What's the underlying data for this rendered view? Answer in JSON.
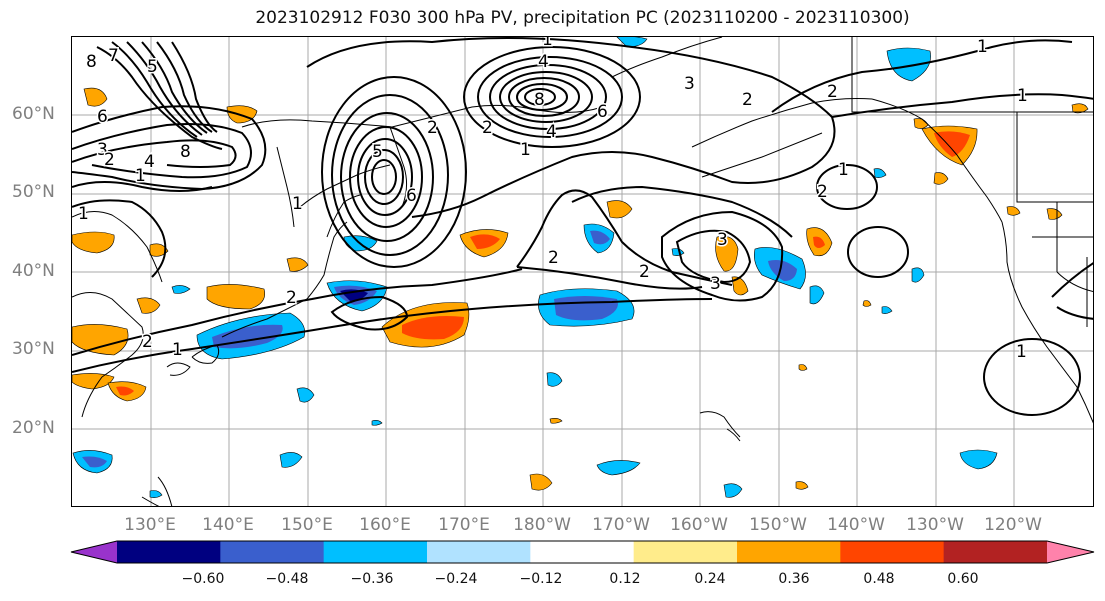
{
  "title": "2023102912 F030 300 hPa PV, precipitation PC (2023110200 - 2023110300)",
  "lat_labels": [
    "60°N",
    "50°N",
    "40°N",
    "30°N",
    "20°N"
  ],
  "lon_labels": [
    "130°E",
    "140°E",
    "150°E",
    "160°E",
    "170°E",
    "180°W",
    "170°W",
    "160°W",
    "150°W",
    "140°W",
    "130°W",
    "120°W"
  ],
  "colorbar": {
    "tick_labels": [
      "−0.60",
      "−0.48",
      "−0.36",
      "−0.24",
      "−0.12",
      "0.12",
      "0.24",
      "0.36",
      "0.48",
      "0.60"
    ],
    "bin_colors": [
      "#9933cc",
      "#000080",
      "#3a5fcd",
      "#00bfff",
      "#b0e2ff",
      "#ffffff",
      "#ffec8b",
      "#ffa500",
      "#ff4500",
      "#b22222",
      "#ff82ab"
    ]
  },
  "pv_contour_labels": [
    "8",
    "7",
    "6",
    "5",
    "3",
    "2",
    "1",
    "4",
    "1",
    "8",
    "1",
    "5",
    "6",
    "2",
    "8",
    "4",
    "3",
    "2",
    "6",
    "1",
    "4",
    "1",
    "2",
    "1",
    "2",
    "1",
    "2",
    "2",
    "1",
    "2",
    "3",
    "2",
    "2",
    "1",
    "3",
    "1"
  ],
  "colors": {
    "negative_strong": "#3a5fcd",
    "negative_mid": "#00bfff",
    "negative_weak": "#b0e2ff",
    "positive_weak": "#ffec8b",
    "positive_mid": "#ffa500",
    "positive_strong": "#ff4500",
    "gridline": "#a8a8a8",
    "coast": "#000000",
    "tick_label": "#7f7f7f"
  }
}
